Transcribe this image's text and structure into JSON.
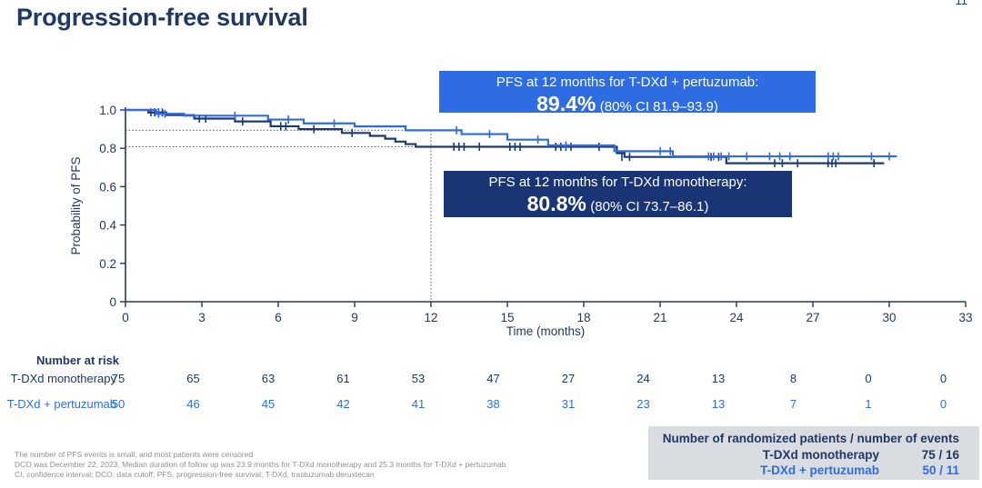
{
  "page": {
    "title": "Progression-free survival",
    "page_number": "11"
  },
  "chart_data": {
    "type": "line",
    "subtype": "kaplan-meier-step",
    "title": "Progression-free survival",
    "xlabel": "Time (months)",
    "ylabel": "Probability of PFS",
    "xlim": [
      0,
      33
    ],
    "xticks": [
      0,
      3,
      6,
      9,
      12,
      15,
      18,
      21,
      24,
      27,
      30,
      33
    ],
    "ylim": [
      0,
      1.0
    ],
    "yticks": [
      0,
      0.2,
      0.4,
      0.6,
      0.8,
      1.0
    ],
    "grid": false,
    "legend_position": "none",
    "reference_lines": {
      "vertical_x": 12,
      "horizontal_y": [
        0.894,
        0.808
      ],
      "style": "dotted",
      "color": "#5a5a5a"
    },
    "series": [
      {
        "name": "T-DXd monotherapy",
        "color": "#1c3a72",
        "pfs_at_12_months": "80.8%",
        "ci_80": "73.7–86.1",
        "step_points": [
          [
            0,
            1.0
          ],
          [
            0.9,
            1.0
          ],
          [
            0.9,
            0.987
          ],
          [
            1.6,
            0.987
          ],
          [
            1.6,
            0.973
          ],
          [
            2.7,
            0.973
          ],
          [
            2.7,
            0.955
          ],
          [
            4.3,
            0.955
          ],
          [
            4.3,
            0.94
          ],
          [
            5.7,
            0.94
          ],
          [
            5.7,
            0.915
          ],
          [
            6.8,
            0.915
          ],
          [
            6.8,
            0.9
          ],
          [
            8.5,
            0.9
          ],
          [
            8.5,
            0.88
          ],
          [
            9.6,
            0.88
          ],
          [
            9.6,
            0.865
          ],
          [
            10.2,
            0.865
          ],
          [
            10.2,
            0.85
          ],
          [
            10.6,
            0.85
          ],
          [
            10.6,
            0.835
          ],
          [
            11.0,
            0.835
          ],
          [
            11.0,
            0.822
          ],
          [
            11.4,
            0.822
          ],
          [
            11.4,
            0.808
          ],
          [
            19.3,
            0.808
          ],
          [
            19.3,
            0.775
          ],
          [
            19.6,
            0.775
          ],
          [
            19.6,
            0.755
          ],
          [
            23.6,
            0.755
          ],
          [
            23.6,
            0.722
          ],
          [
            29.8,
            0.722
          ]
        ],
        "censor_marks": [
          [
            1.0,
            0.987
          ],
          [
            1.15,
            0.987
          ],
          [
            1.3,
            0.987
          ],
          [
            1.45,
            0.987
          ],
          [
            2.9,
            0.955
          ],
          [
            3.15,
            0.955
          ],
          [
            4.6,
            0.94
          ],
          [
            6.1,
            0.915
          ],
          [
            6.3,
            0.915
          ],
          [
            7.4,
            0.9
          ],
          [
            8.9,
            0.88
          ],
          [
            12.9,
            0.808
          ],
          [
            13.1,
            0.808
          ],
          [
            13.3,
            0.808
          ],
          [
            13.9,
            0.808
          ],
          [
            15.1,
            0.808
          ],
          [
            15.3,
            0.808
          ],
          [
            15.5,
            0.808
          ],
          [
            16.9,
            0.808
          ],
          [
            17.1,
            0.808
          ],
          [
            17.3,
            0.808
          ],
          [
            17.5,
            0.808
          ],
          [
            18.6,
            0.808
          ],
          [
            19.5,
            0.755
          ],
          [
            19.8,
            0.755
          ],
          [
            23.0,
            0.755
          ],
          [
            23.3,
            0.755
          ],
          [
            25.5,
            0.722
          ],
          [
            25.8,
            0.722
          ],
          [
            26.4,
            0.722
          ],
          [
            27.6,
            0.722
          ],
          [
            27.75,
            0.722
          ],
          [
            27.9,
            0.722
          ],
          [
            29.4,
            0.722
          ]
        ]
      },
      {
        "name": "T-DXd + pertuzumab",
        "color": "#2e6ce4",
        "pfs_at_12_months": "89.4%",
        "ci_80": "81.9–93.9",
        "step_points": [
          [
            0,
            1.0
          ],
          [
            1.2,
            1.0
          ],
          [
            1.2,
            0.98
          ],
          [
            2.3,
            0.98
          ],
          [
            2.3,
            0.97
          ],
          [
            5.6,
            0.97
          ],
          [
            5.6,
            0.95
          ],
          [
            7.0,
            0.95
          ],
          [
            7.0,
            0.93
          ],
          [
            9.0,
            0.93
          ],
          [
            9.0,
            0.914
          ],
          [
            11.0,
            0.914
          ],
          [
            11.0,
            0.894
          ],
          [
            13.2,
            0.894
          ],
          [
            13.2,
            0.874
          ],
          [
            15.0,
            0.874
          ],
          [
            15.0,
            0.845
          ],
          [
            16.6,
            0.845
          ],
          [
            16.6,
            0.815
          ],
          [
            19.2,
            0.815
          ],
          [
            19.2,
            0.785
          ],
          [
            21.5,
            0.785
          ],
          [
            21.5,
            0.758
          ],
          [
            30.3,
            0.758
          ]
        ],
        "censor_marks": [
          [
            1.3,
            0.98
          ],
          [
            1.55,
            0.98
          ],
          [
            4.3,
            0.97
          ],
          [
            6.4,
            0.95
          ],
          [
            8.2,
            0.93
          ],
          [
            13.0,
            0.894
          ],
          [
            14.3,
            0.874
          ],
          [
            16.2,
            0.845
          ],
          [
            17.3,
            0.815
          ],
          [
            21.0,
            0.785
          ],
          [
            21.4,
            0.785
          ],
          [
            22.9,
            0.758
          ],
          [
            23.1,
            0.758
          ],
          [
            23.4,
            0.758
          ],
          [
            23.7,
            0.758
          ],
          [
            24.4,
            0.758
          ],
          [
            25.3,
            0.758
          ],
          [
            25.7,
            0.758
          ],
          [
            26.1,
            0.758
          ],
          [
            27.6,
            0.758
          ],
          [
            27.8,
            0.758
          ],
          [
            28.0,
            0.758
          ],
          [
            29.3,
            0.758
          ],
          [
            30.0,
            0.758
          ]
        ]
      }
    ],
    "number_at_risk": {
      "header": "Number at risk",
      "timepoints": [
        0,
        3,
        6,
        9,
        12,
        15,
        18,
        21,
        24,
        27,
        30,
        33
      ],
      "rows": [
        {
          "label": "T-DXd monotherapy",
          "color": "#1f3864",
          "values": [
            75,
            65,
            63,
            61,
            53,
            47,
            27,
            24,
            13,
            8,
            0,
            0
          ]
        },
        {
          "label": "T-DXd + pertuzumab",
          "color": "#2e6ce4",
          "values": [
            50,
            46,
            45,
            42,
            41,
            38,
            31,
            23,
            13,
            7,
            1,
            0
          ]
        }
      ]
    }
  },
  "annotations": {
    "pertuzumab_box": {
      "line1": "PFS at 12 months for T-DXd + pertuzumab:",
      "value": "89.4%",
      "ci": "(80% CI 81.9–93.9)",
      "bg_color": "#2e6ce4"
    },
    "mono_box": {
      "line1": "PFS at 12 months for T-DXd monotherapy:",
      "value": "80.8%",
      "ci": "(80% CI 73.7–86.1)",
      "bg_color": "#1a3575"
    }
  },
  "summary_box": {
    "title": "Number of randomized patients / number of events",
    "rows": [
      {
        "label": "T-DXd monotherapy",
        "value": "75 / 16"
      },
      {
        "label": "T-DXd + pertuzumab",
        "value": "50 / 11"
      }
    ],
    "bg_color": "#d9dce1"
  },
  "footnotes": [
    "The number of PFS events is small, and most patients were censored",
    "DCO was December 22, 2023. Median duration of follow up was 23.9 months for T-DXd monotherapy and 25.3 months for T-DXd + pertuzumab",
    "CI, confidence interval; DCO, data cutoff; PFS, progression-free survival; T-DXd, trastuzumab deruxtecan"
  ]
}
